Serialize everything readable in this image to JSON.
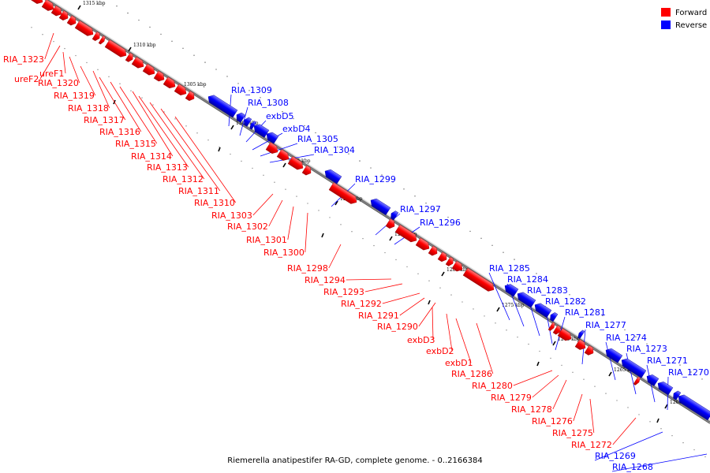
{
  "caption": "Riemerella anatipestifer RA-GD, complete genome. - 0..2166384",
  "legend": [
    {
      "label": "Forward",
      "color": "#ff0000"
    },
    {
      "label": "Reverse",
      "color": "#0000ff"
    }
  ],
  "colors": {
    "forward": "#ff0000",
    "reverse": "#0000ff",
    "backbone": "#888888"
  },
  "ticks": [
    "1315 kbp",
    "1310 kbp",
    "1305 kbp",
    "1300 kbp",
    "1295 kbp",
    "1290 kbp",
    "1285 kbp",
    "1280 kbp",
    "1275 kbp",
    "1270 kbp",
    "1265 kbp",
    "1260 kbp"
  ],
  "forward_labels": [
    "RIA_1323",
    "ureF2",
    "ureF1",
    "RIA_1320",
    "RIA_1319",
    "RIA_1318",
    "RIA_1317",
    "RIA_1316",
    "RIA_1315",
    "RIA_1314",
    "RIA_1313",
    "RIA_1312",
    "RIA_1311",
    "RIA_1310",
    "RIA_1303",
    "RIA_1302",
    "RIA_1301",
    "RIA_1300",
    "RIA_1298",
    "RIA_1294",
    "RIA_1293",
    "RIA_1292",
    "RIA_1291",
    "RIA_1290",
    "exbD3",
    "exbD2",
    "exbD1",
    "RIA_1286",
    "RIA_1280",
    "RIA_1279",
    "RIA_1278",
    "RIA_1276",
    "RIA_1275",
    "RIA_1272"
  ],
  "reverse_labels": [
    "RIA_1309",
    "RIA_1308",
    "exbD5",
    "exbD4",
    "RIA_1305",
    "RIA_1304",
    "RIA_1299",
    "RIA_1297",
    "RIA_1296",
    "RIA_1285",
    "RIA_1284",
    "RIA_1283",
    "RIA_1282",
    "RIA_1281",
    "RIA_1277",
    "RIA_1274",
    "RIA_1273",
    "RIA_1271",
    "RIA_1270",
    "RIA_1269",
    "RIA_1268"
  ]
}
